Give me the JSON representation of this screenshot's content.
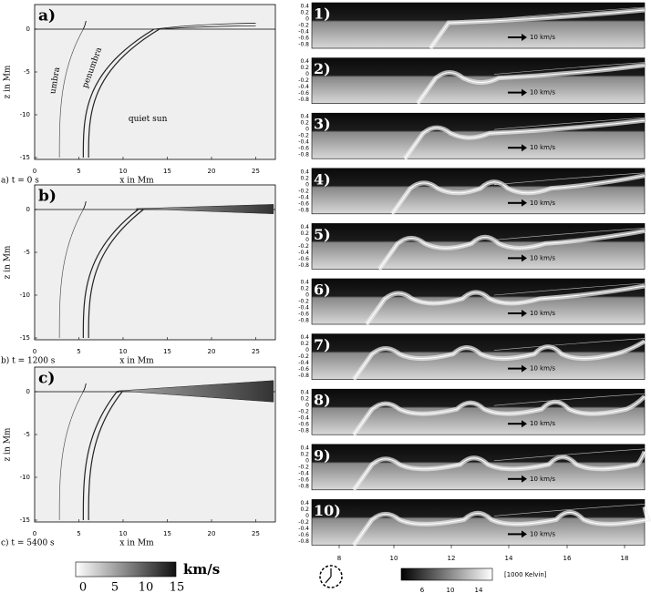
{
  "left_panels": {
    "labels": [
      "a)",
      "b)",
      "c)"
    ],
    "captions": [
      "a) t = 0 s",
      "b) t = 1200 s",
      "c) t = 5400 s"
    ],
    "x_label": "x in Mm",
    "y_label": "z in Mm",
    "x_ticks": [
      "0",
      "5",
      "10",
      "15",
      "20",
      "25"
    ],
    "y_ticks": [
      "0",
      "-5",
      "-10",
      "-15"
    ],
    "annotations": {
      "umbra": "umbra",
      "penumbra": "penumbra",
      "quiet_sun": "quiet sun"
    }
  },
  "right_panels": {
    "labels": [
      "1)",
      "2)",
      "3)",
      "4)",
      "5)",
      "6)",
      "7)",
      "8)",
      "9)",
      "10)"
    ],
    "y_ticks": [
      "0.4",
      "0.2",
      "0",
      "-0.2",
      "-0.4",
      "-0.6",
      "-0.8"
    ],
    "arrow_label": "10 km/s",
    "x_ticks": [
      "8",
      "10",
      "12",
      "14",
      "16",
      "18"
    ]
  },
  "colorbars": {
    "velocity": {
      "unit": "km/s",
      "ticks": [
        "0",
        "5",
        "10",
        "15"
      ]
    },
    "temperature": {
      "unit": "[1000 Kelvin]",
      "ticks": [
        "6",
        "10",
        "14"
      ]
    }
  }
}
